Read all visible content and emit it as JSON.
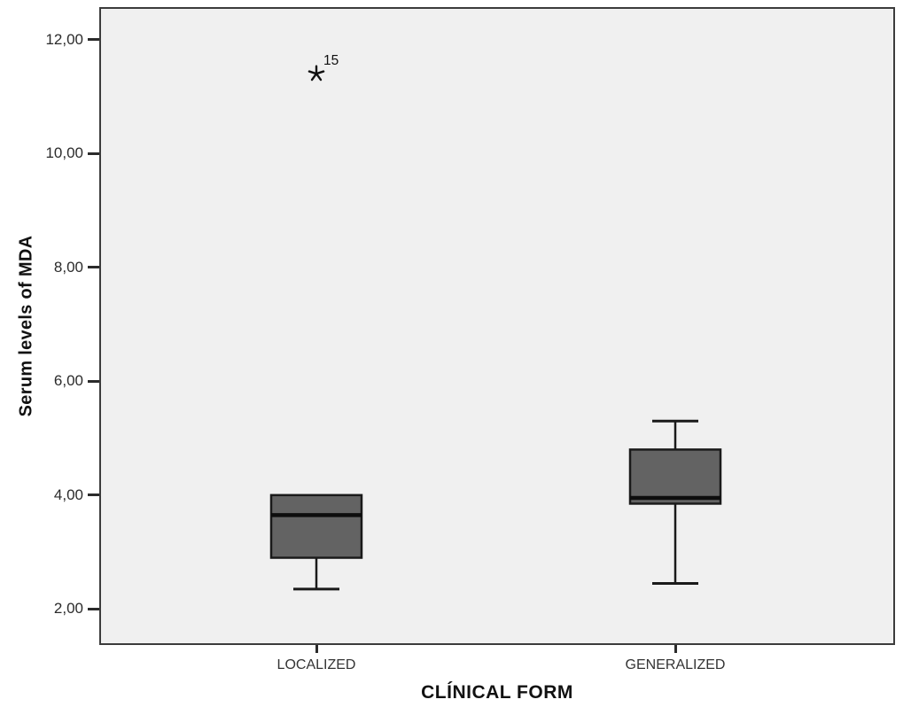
{
  "chart_data": {
    "type": "boxplot",
    "title": "",
    "xlabel": "CLÍNICAL FORM",
    "ylabel": "Serum levels of MDA",
    "ylim": [
      1.43,
      12.57
    ],
    "grid": false,
    "legend": "none",
    "ytick_format": "comma-decimal",
    "yticks": [
      {
        "value": 12,
        "label": "12,00"
      },
      {
        "value": 10,
        "label": "10,00"
      },
      {
        "value": 8,
        "label": "8,00"
      },
      {
        "value": 6,
        "label": "6,00"
      },
      {
        "value": 4,
        "label": "4,00"
      },
      {
        "value": 2,
        "label": "2,00"
      }
    ],
    "categories": [
      "LOCALIZED",
      "GENERALIZED"
    ],
    "series": [
      {
        "category": "LOCALIZED",
        "whisker_low": 2.35,
        "q1": 2.9,
        "median": 3.65,
        "q3": 4.0,
        "whisker_high": 4.0,
        "outliers": [
          {
            "value": 11.4,
            "label": "15",
            "marker": "star"
          }
        ]
      },
      {
        "category": "GENERALIZED",
        "whisker_low": 2.45,
        "q1": 3.85,
        "median": 3.95,
        "q3": 4.8,
        "whisker_high": 5.3,
        "outliers": []
      }
    ],
    "colors": {
      "box_fill": "#636363",
      "box_stroke": "#1a1a1a",
      "median": "#0d0d0d",
      "whisker": "#1a1a1a",
      "outlier": "#111111",
      "plot_bg": "#f0f0f0",
      "plot_border": "#3c3c3c",
      "tick": "#2b2b2b",
      "tick_label": "#2b2b2b",
      "category_label": "#333333",
      "axis_title": "#111111",
      "figure_bg": "#ffffff"
    }
  }
}
